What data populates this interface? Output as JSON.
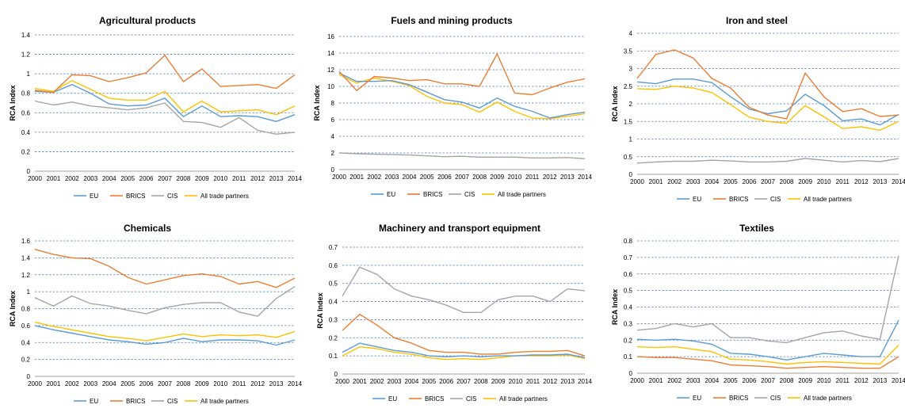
{
  "colors": {
    "EU": "#5b9bd5",
    "BRICS": "#ed7d31",
    "CIS": "#a5a5a5",
    "All trade partners": "#ffc000",
    "gridline": "#4f81bd"
  },
  "chart_data": [
    {
      "type": "line",
      "title": "Agricultural products",
      "xlabel": "",
      "ylabel": "RCA Index",
      "x": [
        "2000",
        "2001",
        "2002",
        "2003",
        "2004",
        "2005",
        "2006",
        "2007",
        "2008",
        "2009",
        "2010",
        "2011",
        "2012",
        "2013",
        "2014"
      ],
      "ylim": [
        0,
        1.4
      ],
      "yticks": [
        "0",
        "0.2",
        "0.4",
        "0.6",
        "0.8",
        "1",
        "1.2",
        "1.4"
      ],
      "grid": true,
      "legend": "bottom",
      "series": [
        {
          "name": "EU",
          "values": [
            0.82,
            0.81,
            0.89,
            0.8,
            0.69,
            0.67,
            0.68,
            0.75,
            0.56,
            0.67,
            0.56,
            0.57,
            0.56,
            0.51,
            0.58
          ]
        },
        {
          "name": "BRICS",
          "values": [
            0.83,
            0.81,
            0.99,
            0.98,
            0.92,
            0.96,
            1.01,
            1.19,
            0.92,
            1.05,
            0.87,
            0.88,
            0.89,
            0.85,
            0.99
          ]
        },
        {
          "name": "CIS",
          "values": [
            0.72,
            0.68,
            0.71,
            0.67,
            0.65,
            0.63,
            0.65,
            0.7,
            0.51,
            0.5,
            0.45,
            0.55,
            0.42,
            0.38,
            0.4
          ]
        },
        {
          "name": "All trade partners",
          "values": [
            0.85,
            0.82,
            0.93,
            0.84,
            0.75,
            0.73,
            0.73,
            0.82,
            0.61,
            0.72,
            0.61,
            0.62,
            0.63,
            0.58,
            0.67
          ]
        }
      ]
    },
    {
      "type": "line",
      "title": "Fuels and mining products",
      "xlabel": "",
      "ylabel": "RCA Index",
      "x": [
        "2000",
        "2001",
        "2002",
        "2003",
        "2004",
        "2005",
        "2006",
        "2007",
        "2008",
        "2009",
        "2010",
        "2011",
        "2012",
        "2013",
        "2014"
      ],
      "ylim": [
        0,
        16
      ],
      "yticks": [
        "0",
        "2",
        "4",
        "6",
        "8",
        "10",
        "12",
        "14",
        "16"
      ],
      "grid": true,
      "legend": "bottom",
      "series": [
        {
          "name": "EU",
          "values": [
            11.6,
            10.6,
            10.6,
            10.7,
            10.2,
            9.3,
            8.4,
            8.1,
            7.4,
            8.6,
            7.6,
            7.0,
            6.2,
            6.6,
            6.9
          ]
        },
        {
          "name": "BRICS",
          "values": [
            11.8,
            9.5,
            11.2,
            11.0,
            10.7,
            10.8,
            10.3,
            10.3,
            10.0,
            13.9,
            9.2,
            9.0,
            9.8,
            10.5,
            10.9
          ]
        },
        {
          "name": "CIS",
          "values": [
            2.0,
            1.9,
            1.85,
            1.8,
            1.75,
            1.65,
            1.55,
            1.6,
            1.5,
            1.5,
            1.5,
            1.4,
            1.4,
            1.45,
            1.3
          ]
        },
        {
          "name": "All trade partners",
          "values": [
            11.4,
            10.4,
            11.0,
            10.6,
            10.1,
            8.8,
            8.0,
            7.8,
            6.9,
            8.1,
            7.0,
            6.2,
            6.1,
            6.4,
            6.7
          ]
        }
      ]
    },
    {
      "type": "line",
      "title": "Iron and steel",
      "xlabel": "",
      "ylabel": "RCA Index",
      "x": [
        "2000",
        "2001",
        "2002",
        "2003",
        "2004",
        "2005",
        "2006",
        "2007",
        "2008",
        "2009",
        "2010",
        "2011",
        "2012",
        "2013",
        "2014"
      ],
      "ylim": [
        0,
        4
      ],
      "yticks": [
        "0",
        "0.5",
        "1",
        "1.5",
        "2",
        "2.5",
        "3",
        "3.5",
        "4"
      ],
      "grid": true,
      "legend": "bottom",
      "series": [
        {
          "name": "EU",
          "values": [
            2.62,
            2.57,
            2.7,
            2.7,
            2.6,
            2.2,
            1.85,
            1.72,
            1.8,
            2.27,
            1.95,
            1.52,
            1.57,
            1.4,
            1.7
          ]
        },
        {
          "name": "BRICS",
          "values": [
            2.72,
            3.4,
            3.53,
            3.3,
            2.72,
            2.45,
            1.9,
            1.68,
            1.57,
            2.87,
            2.2,
            1.78,
            1.86,
            1.64,
            1.68
          ]
        },
        {
          "name": "CIS",
          "values": [
            0.32,
            0.35,
            0.37,
            0.37,
            0.4,
            0.38,
            0.35,
            0.35,
            0.37,
            0.45,
            0.4,
            0.35,
            0.39,
            0.36,
            0.45
          ]
        },
        {
          "name": "All trade partners",
          "values": [
            2.43,
            2.41,
            2.5,
            2.45,
            2.32,
            1.98,
            1.62,
            1.5,
            1.45,
            1.95,
            1.63,
            1.3,
            1.35,
            1.25,
            1.5
          ]
        }
      ]
    },
    {
      "type": "line",
      "title": "Chemicals",
      "xlabel": "",
      "ylabel": "RCA Index",
      "x": [
        "2000",
        "2001",
        "2002",
        "2003",
        "2004",
        "2005",
        "2006",
        "2007",
        "2008",
        "2009",
        "2010",
        "2011",
        "2012",
        "2013",
        "2014"
      ],
      "ylim": [
        0,
        1.6
      ],
      "yticks": [
        "0",
        "0.2",
        "0.4",
        "0.6",
        "0.8",
        "1",
        "1.2",
        "1.4",
        "1.6"
      ],
      "grid": true,
      "legend": "bottom",
      "series": [
        {
          "name": "EU",
          "values": [
            0.6,
            0.55,
            0.51,
            0.47,
            0.43,
            0.41,
            0.38,
            0.4,
            0.45,
            0.41,
            0.43,
            0.43,
            0.42,
            0.37,
            0.43
          ]
        },
        {
          "name": "BRICS",
          "values": [
            1.5,
            1.44,
            1.4,
            1.39,
            1.3,
            1.17,
            1.09,
            1.14,
            1.19,
            1.21,
            1.18,
            1.09,
            1.12,
            1.05,
            1.16
          ]
        },
        {
          "name": "CIS",
          "values": [
            0.93,
            0.83,
            0.95,
            0.86,
            0.83,
            0.78,
            0.74,
            0.81,
            0.85,
            0.87,
            0.87,
            0.76,
            0.71,
            0.92,
            1.06
          ]
        },
        {
          "name": "All trade partners",
          "values": [
            0.64,
            0.59,
            0.55,
            0.51,
            0.47,
            0.45,
            0.42,
            0.46,
            0.5,
            0.47,
            0.49,
            0.48,
            0.49,
            0.46,
            0.53
          ]
        }
      ]
    },
    {
      "type": "line",
      "title": "Machinery and transport equipment",
      "xlabel": "",
      "ylabel": "RCA Index",
      "x": [
        "2000",
        "2001",
        "2002",
        "2003",
        "2004",
        "2005",
        "2006",
        "2007",
        "2008",
        "2009",
        "2010",
        "2011",
        "2012",
        "2013",
        "2014"
      ],
      "ylim": [
        0,
        0.7
      ],
      "yticks": [
        "0",
        "0.1",
        "0.2",
        "0.3",
        "0.4",
        "0.5",
        "0.6",
        "0.7"
      ],
      "grid": true,
      "legend": "bottom",
      "series": [
        {
          "name": "EU",
          "values": [
            0.12,
            0.17,
            0.15,
            0.13,
            0.12,
            0.1,
            0.095,
            0.1,
            0.095,
            0.1,
            0.1,
            0.105,
            0.105,
            0.11,
            0.09
          ]
        },
        {
          "name": "BRICS",
          "values": [
            0.24,
            0.33,
            0.27,
            0.2,
            0.17,
            0.13,
            0.12,
            0.12,
            0.11,
            0.11,
            0.12,
            0.125,
            0.125,
            0.13,
            0.1
          ]
        },
        {
          "name": "CIS",
          "values": [
            0.43,
            0.59,
            0.55,
            0.47,
            0.43,
            0.41,
            0.38,
            0.34,
            0.34,
            0.41,
            0.43,
            0.43,
            0.4,
            0.47,
            0.46
          ]
        },
        {
          "name": "All trade partners",
          "values": [
            0.1,
            0.15,
            0.14,
            0.12,
            0.11,
            0.09,
            0.08,
            0.085,
            0.08,
            0.09,
            0.1,
            0.1,
            0.1,
            0.105,
            0.085
          ]
        }
      ]
    },
    {
      "type": "line",
      "title": "Textiles",
      "xlabel": "",
      "ylabel": "RCA Index",
      "x": [
        "2000",
        "2001",
        "2002",
        "2003",
        "2004",
        "2005",
        "2006",
        "2007",
        "2008",
        "2009",
        "2010",
        "2011",
        "2012",
        "2013",
        "2014"
      ],
      "ylim": [
        0,
        0.8
      ],
      "yticks": [
        "0",
        "0.1",
        "0.2",
        "0.3",
        "0.4",
        "0.5",
        "0.6",
        "0.7",
        "0.8"
      ],
      "grid": true,
      "legend": "bottom",
      "series": [
        {
          "name": "EU",
          "values": [
            0.205,
            0.2,
            0.205,
            0.195,
            0.175,
            0.12,
            0.115,
            0.1,
            0.08,
            0.1,
            0.12,
            0.11,
            0.1,
            0.1,
            0.32
          ]
        },
        {
          "name": "BRICS",
          "values": [
            0.1,
            0.095,
            0.095,
            0.085,
            0.075,
            0.05,
            0.045,
            0.04,
            0.03,
            0.035,
            0.04,
            0.035,
            0.03,
            0.03,
            0.1
          ]
        },
        {
          "name": "CIS",
          "values": [
            0.26,
            0.27,
            0.3,
            0.28,
            0.3,
            0.215,
            0.215,
            0.195,
            0.185,
            0.215,
            0.245,
            0.255,
            0.225,
            0.205,
            0.71
          ]
        },
        {
          "name": "All trade partners",
          "values": [
            0.16,
            0.155,
            0.16,
            0.145,
            0.13,
            0.085,
            0.08,
            0.07,
            0.055,
            0.065,
            0.07,
            0.065,
            0.06,
            0.055,
            0.17
          ]
        }
      ]
    }
  ]
}
